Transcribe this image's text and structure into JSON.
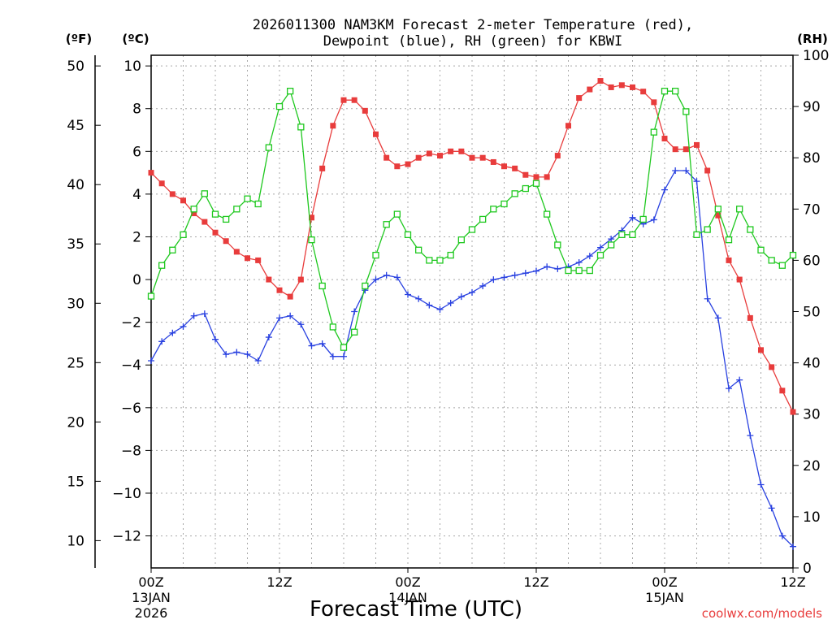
{
  "title_line1": "2026011300 NAM3KM Forecast 2-meter Temperature (red),",
  "title_line2": "Dewpoint (blue), RH (green) for KBWI",
  "unit_f": "(ºF)",
  "unit_c": "(ºC)",
  "unit_rh": "(RH)",
  "xlabel": "Forecast Time (UTC)",
  "credit": "coolwx.com/models",
  "colors": {
    "temp": "#e83c3c",
    "dewpoint": "#2840e0",
    "rh": "#1ec81e",
    "grid": "#a8a8a8",
    "credit": "#e83c3c"
  },
  "chart_data": {
    "type": "line",
    "x_hours": [
      0,
      1,
      2,
      3,
      4,
      5,
      6,
      7,
      8,
      9,
      10,
      11,
      12,
      13,
      14,
      15,
      16,
      17,
      18,
      19,
      20,
      21,
      22,
      23,
      24,
      25,
      26,
      27,
      28,
      29,
      30,
      31,
      32,
      33,
      34,
      35,
      36,
      37,
      38,
      39,
      40,
      41,
      42,
      43,
      44,
      45,
      46,
      47,
      48,
      49,
      50,
      51,
      52,
      53,
      54,
      55,
      56,
      57,
      58,
      59,
      60
    ],
    "xlim": [
      0,
      60
    ],
    "ylim_c": [
      -13.5,
      10.5
    ],
    "ylim_f": [
      7.7,
      50.9
    ],
    "ylim_rh": [
      0,
      100
    ],
    "x_ticks": [
      {
        "h": 0,
        "label": "00Z",
        "sub1": "13JAN",
        "sub2": "2026"
      },
      {
        "h": 12,
        "label": "12Z",
        "sub1": "",
        "sub2": ""
      },
      {
        "h": 24,
        "label": "00Z",
        "sub1": "14JAN",
        "sub2": ""
      },
      {
        "h": 36,
        "label": "12Z",
        "sub1": "",
        "sub2": ""
      },
      {
        "h": 48,
        "label": "00Z",
        "sub1": "15JAN",
        "sub2": ""
      },
      {
        "h": 60,
        "label": "12Z",
        "sub1": "",
        "sub2": ""
      }
    ],
    "c_ticks": [
      10,
      8,
      6,
      4,
      2,
      0,
      -2,
      -4,
      -6,
      -8,
      -10,
      -12
    ],
    "c_tick_labels": [
      "10",
      "8",
      "6",
      "4",
      "2",
      "0",
      "−2",
      "−4",
      "−6",
      "−8",
      "−10",
      "−12"
    ],
    "f_ticks": [
      50,
      45,
      40,
      35,
      30,
      25,
      20,
      15,
      10
    ],
    "rh_ticks": [
      100,
      90,
      80,
      70,
      60,
      50,
      40,
      30,
      20,
      10,
      0
    ],
    "series": [
      {
        "name": "Temperature (°C)",
        "color": "red",
        "axis": "c",
        "marker": "square-filled",
        "values": [
          5.0,
          4.5,
          4.0,
          3.7,
          3.1,
          2.7,
          2.2,
          1.8,
          1.3,
          1.0,
          0.9,
          0.0,
          -0.5,
          -0.8,
          0.0,
          2.9,
          5.2,
          7.2,
          8.4,
          8.4,
          7.9,
          6.8,
          5.7,
          5.3,
          5.4,
          5.7,
          5.9,
          5.8,
          6.0,
          6.0,
          5.7,
          5.7,
          5.5,
          5.3,
          5.2,
          4.9,
          4.8,
          4.8,
          5.8,
          7.2,
          8.5,
          8.9,
          9.3,
          9.0,
          9.1,
          9.0,
          8.8,
          8.3,
          6.6,
          6.1,
          6.1,
          6.3,
          5.1,
          3.0,
          0.9,
          0.0,
          -1.8,
          -3.3,
          -4.1,
          -5.2,
          -6.2
        ]
      },
      {
        "name": "Dewpoint (°C)",
        "color": "blue",
        "axis": "c",
        "marker": "plus",
        "values": [
          -3.8,
          -2.9,
          -2.5,
          -2.2,
          -1.7,
          -1.6,
          -2.8,
          -3.5,
          -3.4,
          -3.5,
          -3.8,
          -2.7,
          -1.8,
          -1.7,
          -2.1,
          -3.1,
          -3.0,
          -3.6,
          -3.6,
          -1.5,
          -0.5,
          0.0,
          0.2,
          0.1,
          -0.7,
          -0.9,
          -1.2,
          -1.4,
          -1.1,
          -0.8,
          -0.6,
          -0.3,
          0.0,
          0.1,
          0.2,
          0.3,
          0.4,
          0.6,
          0.5,
          0.6,
          0.8,
          1.1,
          1.5,
          1.9,
          2.3,
          2.9,
          2.6,
          2.8,
          4.2,
          5.1,
          5.1,
          4.6,
          -0.9,
          -1.8,
          -5.1,
          -4.7,
          -7.3,
          -9.6,
          -10.7,
          -12.0,
          -12.5
        ]
      },
      {
        "name": "RH (%)",
        "color": "green",
        "axis": "rh",
        "marker": "square-open",
        "values": [
          53,
          59,
          62,
          65,
          70,
          73,
          69,
          68,
          70,
          72,
          71,
          82,
          90,
          93,
          86,
          64,
          55,
          47,
          43,
          46,
          55,
          61,
          67,
          69,
          65,
          62,
          60,
          60,
          61,
          64,
          66,
          68,
          70,
          71,
          73,
          74,
          75,
          69,
          63,
          58,
          58,
          58,
          61,
          63,
          65,
          65,
          68,
          85,
          93,
          93,
          89,
          65,
          66,
          70,
          64,
          70,
          66,
          62,
          60,
          59,
          61
        ]
      }
    ]
  }
}
